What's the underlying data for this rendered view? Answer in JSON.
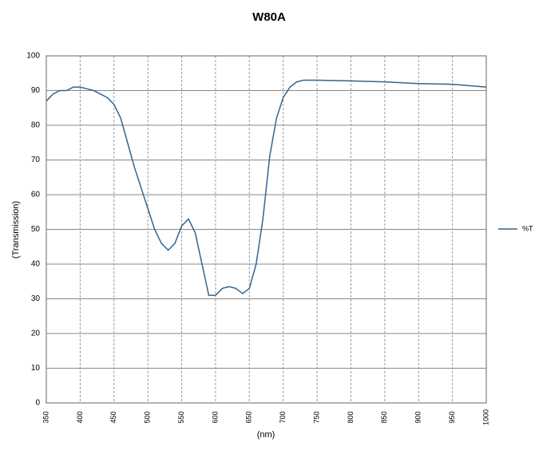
{
  "chart_data": {
    "type": "line",
    "title": "W80A",
    "x_label": "(nm)",
    "y_label": "(Transmission)",
    "x": [
      350,
      360,
      370,
      380,
      390,
      400,
      410,
      420,
      430,
      440,
      450,
      460,
      470,
      480,
      490,
      500,
      510,
      520,
      530,
      540,
      550,
      560,
      570,
      580,
      590,
      600,
      610,
      620,
      630,
      640,
      650,
      660,
      670,
      680,
      690,
      700,
      710,
      720,
      730,
      750,
      800,
      850,
      900,
      950,
      1000
    ],
    "series": [
      {
        "name": "%T",
        "color": "#31648f",
        "values": [
          87,
          89,
          90,
          90,
          91,
          91,
          90.5,
          90,
          89,
          88,
          86,
          82,
          75,
          68,
          62,
          56,
          50,
          46,
          44,
          46,
          51,
          53,
          49,
          40,
          31,
          31,
          33,
          33.5,
          33,
          31.5,
          33,
          40,
          53,
          71,
          82,
          88,
          91,
          92.5,
          93,
          93,
          92.8,
          92.5,
          92,
          91.8,
          91
        ]
      }
    ],
    "xlim": [
      350,
      1000
    ],
    "xticks": [
      350,
      400,
      450,
      500,
      550,
      600,
      650,
      700,
      750,
      800,
      850,
      900,
      950,
      1000
    ],
    "ylim": [
      0,
      100
    ],
    "yticks": [
      0,
      10,
      20,
      30,
      40,
      50,
      60,
      70,
      80,
      90,
      100
    ],
    "grid": true,
    "legend": "right"
  }
}
